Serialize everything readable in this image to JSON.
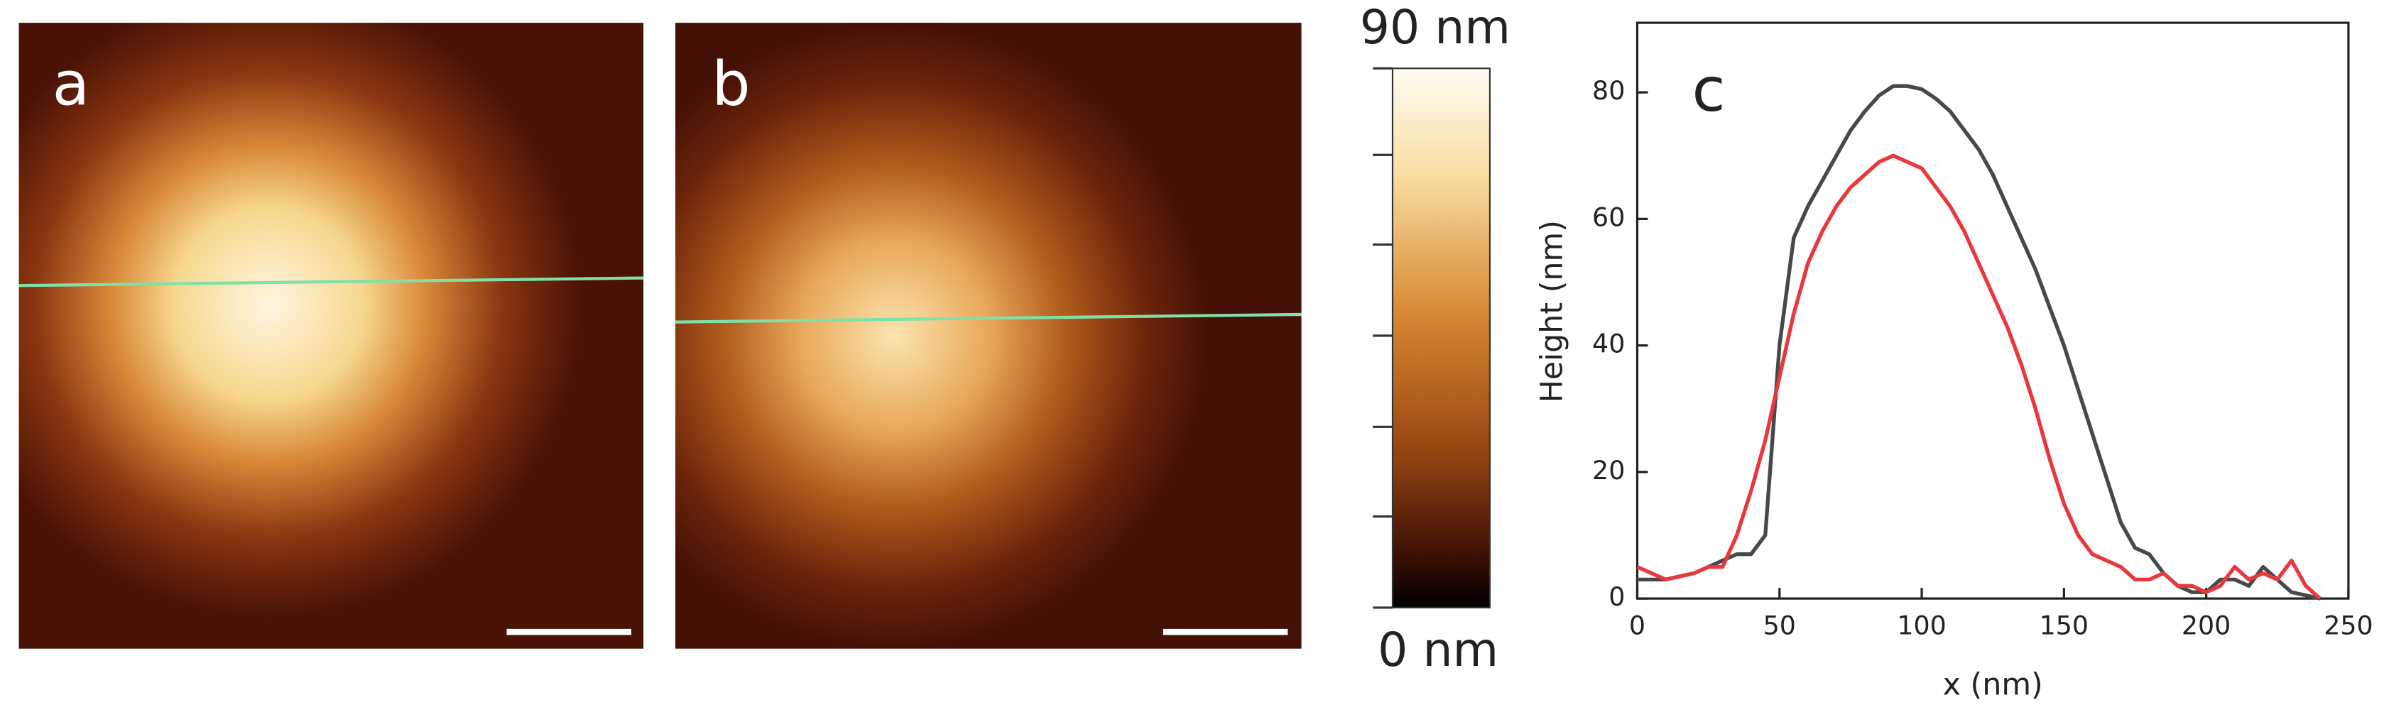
{
  "panels": {
    "a": "a",
    "b": "b"
  },
  "colorbar": {
    "max_label": "90 nm",
    "min_label": "0 nm"
  },
  "chart_data": {
    "type": "line",
    "label": "c",
    "x_label": "x (nm)",
    "y_label": "Height (nm)",
    "xlim": [
      0,
      250
    ],
    "xticks": [
      0,
      50,
      100,
      150,
      200,
      250
    ],
    "ylim": [
      0,
      91
    ],
    "yticks": [
      0,
      20,
      40,
      60,
      80
    ],
    "x": [
      0,
      5,
      10,
      15,
      20,
      25,
      30,
      35,
      40,
      45,
      50,
      55,
      60,
      65,
      70,
      75,
      80,
      85,
      90,
      95,
      100,
      105,
      110,
      115,
      120,
      125,
      130,
      135,
      140,
      145,
      150,
      155,
      160,
      165,
      170,
      175,
      180,
      185,
      190,
      195,
      200,
      205,
      210,
      215,
      220,
      225,
      230,
      235,
      240
    ],
    "series": [
      {
        "color": "#484848",
        "values": [
          3,
          3,
          3,
          3.5,
          4,
          5,
          6,
          7,
          7,
          10,
          40,
          57,
          62,
          66,
          70,
          74,
          77,
          79.5,
          81,
          81,
          80.5,
          79,
          77,
          74,
          71,
          67,
          62,
          57,
          52,
          46,
          40,
          33,
          26,
          19,
          12,
          8,
          7,
          4,
          2,
          1,
          1,
          3,
          3,
          2,
          5,
          3,
          1,
          0.5,
          0
        ]
      },
      {
        "color": "#e8383d",
        "values": [
          5,
          4,
          3,
          3.5,
          4,
          5,
          5,
          10,
          17,
          25,
          35,
          45,
          53,
          58,
          62,
          65,
          67,
          69,
          70,
          69,
          68,
          65,
          62,
          58,
          53,
          48,
          43,
          37,
          30,
          22,
          15,
          10,
          7,
          6,
          5,
          3,
          3,
          4,
          2,
          2,
          1,
          2,
          5,
          3,
          4,
          3,
          6,
          2,
          0
        ]
      }
    ]
  }
}
